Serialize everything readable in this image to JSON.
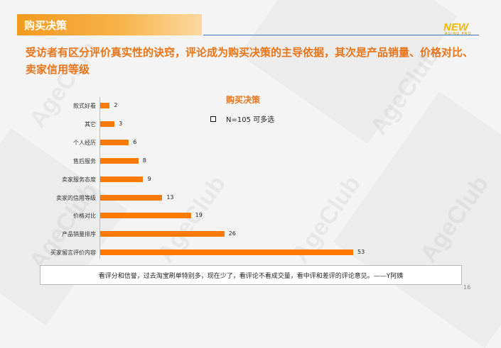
{
  "section_title": "购买决策",
  "logo": {
    "main": "NEW",
    "sub": "AGING PRO"
  },
  "headline": "受访者有区分评价真实性的诀窍，评论成为购买决策的主导依据，其次是产品销量、价格对比、卖家信用等级",
  "watermark_text": "AgeClub",
  "quote": "看评分和信誉，过去淘宝刷单特别多，现在少了，看评论不看成交量，看中评和差评的评论意见。——Y阿姨",
  "page_number": "16",
  "colors": {
    "accent": "#e8751a",
    "bar": "#ff7a00"
  },
  "chart_data": {
    "type": "bar",
    "orientation": "horizontal",
    "title": "购买决策",
    "legend": "N=105  可多选",
    "categories": [
      "款式好看",
      "其它",
      "个人经历",
      "售后服务",
      "卖家服务态度",
      "卖家的信用等级",
      "价格对比",
      "产品销量排序",
      "买家留言评价内容"
    ],
    "values": [
      2,
      3,
      6,
      8,
      9,
      13,
      19,
      26,
      53
    ],
    "xlim": [
      0,
      53
    ],
    "grid": false
  }
}
